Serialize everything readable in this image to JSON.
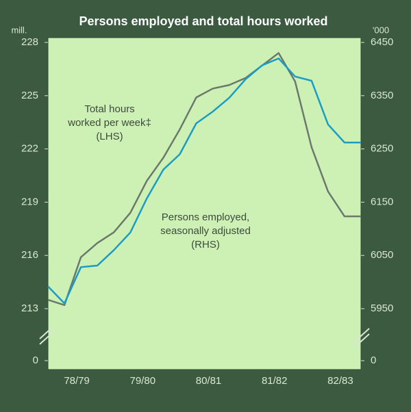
{
  "chart_data": {
    "type": "line",
    "title": "Persons employed and total hours worked",
    "y_unit": "mill.",
    "y2_unit": "'000",
    "xlim": [
      0,
      19
    ],
    "xticks": [
      {
        "value": 1.75,
        "label": "78/79"
      },
      {
        "value": 5.75,
        "label": "79/80"
      },
      {
        "value": 9.75,
        "label": "80/81"
      },
      {
        "value": 13.75,
        "label": "81/82"
      },
      {
        "value": 17.75,
        "label": "82/83"
      }
    ],
    "x": [
      0,
      1,
      2,
      3,
      4,
      5,
      6,
      7,
      8,
      9,
      10,
      11,
      12,
      13,
      14,
      15,
      16,
      17,
      18,
      19
    ],
    "ylim": [
      213,
      228
    ],
    "yticks": [
      0,
      213,
      216,
      219,
      222,
      225,
      228
    ],
    "y2lim": [
      5950,
      6450
    ],
    "y2ticks": [
      0,
      5950,
      6050,
      6150,
      6250,
      6350,
      6450
    ],
    "axis_break": true,
    "series": [
      {
        "name": "Total hours worked per week‡ (LHS)",
        "color": "#6b786c",
        "values": [
          213.5,
          213.2,
          215.9,
          216.7,
          217.3,
          218.4,
          220.2,
          221.5,
          223.1,
          224.9,
          225.4,
          225.6,
          226.0,
          226.7,
          227.4,
          225.8,
          222.1,
          219.6,
          218.2,
          218.2
        ]
      },
      {
        "name": "Persons employed, seasonally adjusted (RHS)",
        "color": "#1a9cc4",
        "axis": "y2",
        "values": [
          5992,
          5960,
          6028,
          6031,
          6060,
          6093,
          6157,
          6211,
          6240,
          6298,
          6320,
          6346,
          6381,
          6407,
          6420,
          6386,
          6378,
          6296,
          6262,
          6262
        ]
      }
    ],
    "annotations": [
      [
        "Total hours",
        "worked per week‡",
        "(LHS)"
      ],
      [
        "Persons employed,",
        "seasonally adjusted",
        "(RHS)"
      ]
    ]
  }
}
